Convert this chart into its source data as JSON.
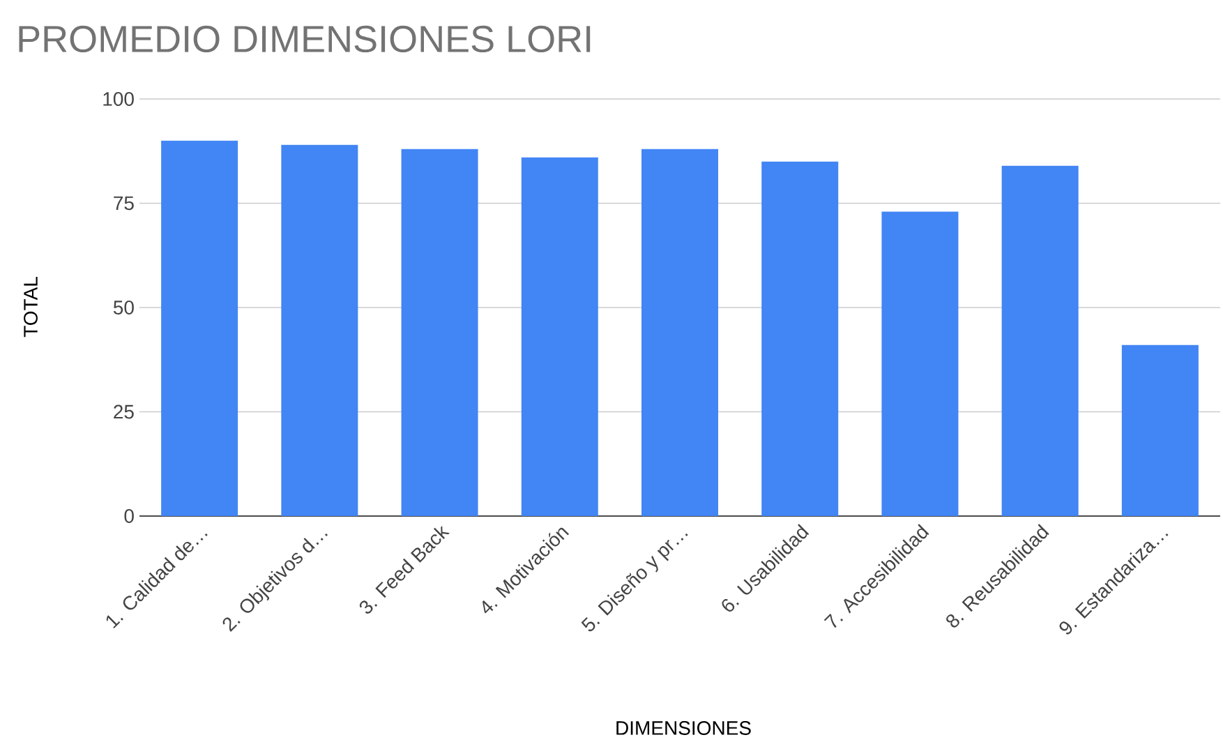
{
  "chart_data": {
    "type": "bar",
    "title": "PROMEDIO DIMENSIONES LORI",
    "xlabel": "DIMENSIONES",
    "ylabel": "TOTAL",
    "categories": [
      "1. Calidad de…",
      "2. Objetivos d…",
      "3. Feed Back",
      "4. Motivación",
      "5. Diseño y pr…",
      "6. Usabilidad",
      "7. Accesibilidad",
      "8. Reusabilidad",
      "9. Estandariza…"
    ],
    "values": [
      90,
      89,
      88,
      86,
      88,
      85,
      73,
      84,
      41
    ],
    "color": "#4285f4",
    "ylim": [
      0,
      100
    ],
    "yticks": [
      0,
      25,
      50,
      75,
      100
    ],
    "grid": "y"
  }
}
